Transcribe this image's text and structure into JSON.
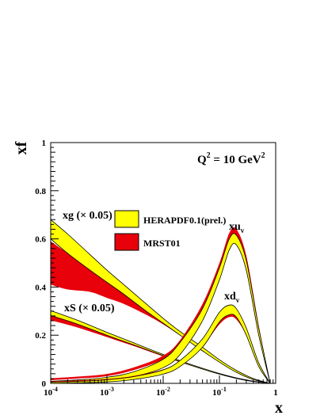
{
  "chart_data": {
    "type": "area",
    "title": "",
    "xlabel": "x",
    "ylabel": "xf",
    "x_scale": "log",
    "xlim": [
      0.0001,
      1
    ],
    "ylim": [
      0,
      1
    ],
    "x_ticks": [
      0.0001,
      0.001,
      0.01,
      0.1,
      1
    ],
    "x_tick_labels": [
      {
        "base": "10",
        "exp": "-4"
      },
      {
        "base": "10",
        "exp": "-3"
      },
      {
        "base": "10",
        "exp": "-2"
      },
      {
        "base": "10",
        "exp": "-1"
      },
      {
        "base": "1",
        "exp": ""
      }
    ],
    "y_ticks": [
      0,
      0.2,
      0.4,
      0.6,
      0.8,
      1
    ],
    "y_tick_labels": [
      "0",
      "0.2",
      "0.4",
      "0.6",
      "0.8",
      "1"
    ],
    "grid": false,
    "legend_position": "upper-middle",
    "legend": [
      {
        "label": "HERAPDF0.1(prel.)",
        "color": "#ffff00"
      },
      {
        "label": "MRST01",
        "color": "#e8000b"
      }
    ],
    "annotations": {
      "q2": {
        "main": "Q",
        "sup1": "2",
        "mid": " = 10 GeV",
        "sup2": "2"
      },
      "xuv": {
        "main": "xu",
        "sub": "v"
      },
      "xdv": {
        "main": "xd",
        "sub": "v"
      },
      "xg": "xg (× 0.05)",
      "xs": "xS (× 0.05)"
    },
    "series": [
      {
        "name": "xg (× 0.05)",
        "band": "MRST01",
        "x": [
          0.0001,
          0.0002,
          0.0005,
          0.001,
          0.002,
          0.005,
          0.01,
          0.02,
          0.05,
          0.1,
          0.2,
          0.4,
          0.8
        ],
        "low": [
          0.41,
          0.39,
          0.38,
          0.355,
          0.33,
          0.285,
          0.245,
          0.2,
          0.14,
          0.09,
          0.045,
          0.015,
          0.0
        ],
        "high": [
          0.59,
          0.54,
          0.47,
          0.42,
          0.375,
          0.31,
          0.26,
          0.21,
          0.145,
          0.095,
          0.05,
          0.017,
          0.0
        ]
      },
      {
        "name": "xg (× 0.05)",
        "band": "HERAPDF0.1(prel.)",
        "x": [
          0.0001,
          0.0002,
          0.0005,
          0.001,
          0.002,
          0.005,
          0.01,
          0.02,
          0.05,
          0.1,
          0.2,
          0.4,
          0.8
        ],
        "low": [
          0.6,
          0.54,
          0.47,
          0.42,
          0.37,
          0.3,
          0.25,
          0.2,
          0.135,
          0.088,
          0.046,
          0.016,
          0.0
        ],
        "high": [
          0.68,
          0.62,
          0.535,
          0.47,
          0.41,
          0.33,
          0.27,
          0.215,
          0.15,
          0.098,
          0.054,
          0.02,
          0.0
        ]
      },
      {
        "name": "xS (× 0.05)",
        "band": "MRST01",
        "x": [
          0.0001,
          0.0003,
          0.001,
          0.003,
          0.01,
          0.03,
          0.1,
          0.3,
          0.8
        ],
        "low": [
          0.262,
          0.232,
          0.192,
          0.155,
          0.112,
          0.075,
          0.038,
          0.012,
          0.0
        ],
        "high": [
          0.286,
          0.25,
          0.203,
          0.163,
          0.117,
          0.078,
          0.04,
          0.013,
          0.0
        ]
      },
      {
        "name": "xS (× 0.05)",
        "band": "HERAPDF0.1(prel.)",
        "x": [
          0.0001,
          0.0003,
          0.001,
          0.003,
          0.01,
          0.03,
          0.1,
          0.3,
          0.8
        ],
        "low": [
          0.282,
          0.246,
          0.2,
          0.16,
          0.115,
          0.076,
          0.038,
          0.012,
          0.0
        ],
        "high": [
          0.302,
          0.262,
          0.212,
          0.168,
          0.12,
          0.08,
          0.041,
          0.014,
          0.0
        ]
      },
      {
        "name": "xuv",
        "band": "MRST01",
        "x": [
          0.0001,
          0.0003,
          0.001,
          0.003,
          0.01,
          0.02,
          0.05,
          0.1,
          0.15,
          0.2,
          0.3,
          0.5,
          0.8
        ],
        "low": [
          0.013,
          0.02,
          0.03,
          0.055,
          0.1,
          0.16,
          0.3,
          0.47,
          0.6,
          0.615,
          0.5,
          0.22,
          0.0
        ],
        "high": [
          0.021,
          0.028,
          0.039,
          0.066,
          0.115,
          0.18,
          0.33,
          0.5,
          0.625,
          0.64,
          0.53,
          0.24,
          0.0
        ]
      },
      {
        "name": "xuv",
        "band": "HERAPDF0.1(prel.)",
        "x": [
          0.0001,
          0.0003,
          0.001,
          0.003,
          0.01,
          0.02,
          0.05,
          0.1,
          0.15,
          0.2,
          0.3,
          0.5,
          0.8
        ],
        "low": [
          0.003,
          0.005,
          0.012,
          0.028,
          0.065,
          0.12,
          0.26,
          0.43,
          0.555,
          0.575,
          0.47,
          0.2,
          0.0
        ],
        "high": [
          0.009,
          0.014,
          0.025,
          0.048,
          0.1,
          0.17,
          0.31,
          0.48,
          0.6,
          0.615,
          0.51,
          0.23,
          0.0
        ]
      },
      {
        "name": "xdv",
        "band": "MRST01",
        "x": [
          0.0001,
          0.0003,
          0.001,
          0.003,
          0.01,
          0.02,
          0.05,
          0.1,
          0.15,
          0.2,
          0.3,
          0.5,
          0.8
        ],
        "low": [
          0.004,
          0.007,
          0.012,
          0.024,
          0.048,
          0.08,
          0.155,
          0.245,
          0.275,
          0.265,
          0.2,
          0.07,
          0.0
        ],
        "high": [
          0.008,
          0.012,
          0.018,
          0.031,
          0.058,
          0.092,
          0.17,
          0.26,
          0.29,
          0.28,
          0.215,
          0.08,
          0.0
        ]
      },
      {
        "name": "xdv",
        "band": "HERAPDF0.1(prel.)",
        "x": [
          0.0001,
          0.0003,
          0.001,
          0.003,
          0.01,
          0.02,
          0.05,
          0.1,
          0.15,
          0.2,
          0.3,
          0.5,
          0.8
        ],
        "low": [
          0.0,
          0.002,
          0.006,
          0.016,
          0.038,
          0.07,
          0.15,
          0.255,
          0.285,
          0.275,
          0.2,
          0.07,
          0.0
        ],
        "high": [
          0.005,
          0.008,
          0.015,
          0.028,
          0.056,
          0.095,
          0.185,
          0.295,
          0.325,
          0.31,
          0.23,
          0.085,
          0.0
        ]
      }
    ]
  }
}
